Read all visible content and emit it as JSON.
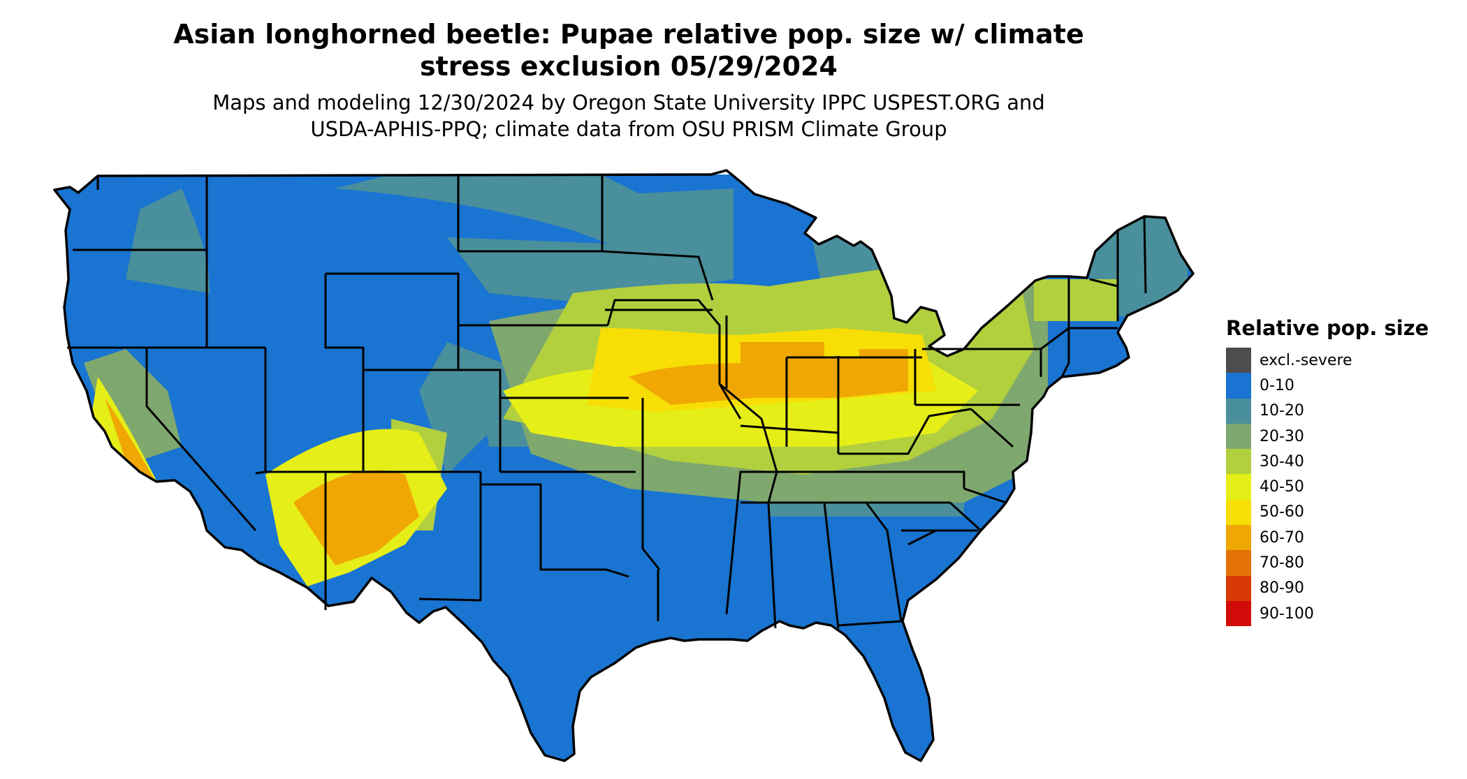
{
  "title": {
    "line1": "Asian longhorned beetle: Pupae relative pop. size w/ climate",
    "line2": "stress exclusion 05/29/2024"
  },
  "subtitle": {
    "line1": "Maps and modeling 12/30/2024 by Oregon State University IPPC USPEST.ORG and",
    "line2": "USDA-APHIS-PPQ; climate data from OSU PRISM Climate Group"
  },
  "legend": {
    "title": "Relative pop. size",
    "items": [
      {
        "label": "excl.-severe",
        "color": "#4d4d4d"
      },
      {
        "label": "0-10",
        "color": "#1a74d1"
      },
      {
        "label": "10-20",
        "color": "#4a8f9c"
      },
      {
        "label": "20-30",
        "color": "#7fa86e"
      },
      {
        "label": "30-40",
        "color": "#b2cf3e"
      },
      {
        "label": "40-50",
        "color": "#e6ee18"
      },
      {
        "label": "50-60",
        "color": "#f7de05"
      },
      {
        "label": "60-70",
        "color": "#f0a704"
      },
      {
        "label": "70-80",
        "color": "#e37204"
      },
      {
        "label": "80-90",
        "color": "#d93a05"
      },
      {
        "label": "90-100",
        "color": "#d10b07"
      }
    ]
  },
  "map": {
    "region": "contiguous-united-states",
    "boundary_color": "#000000",
    "background_class": "0-10"
  }
}
